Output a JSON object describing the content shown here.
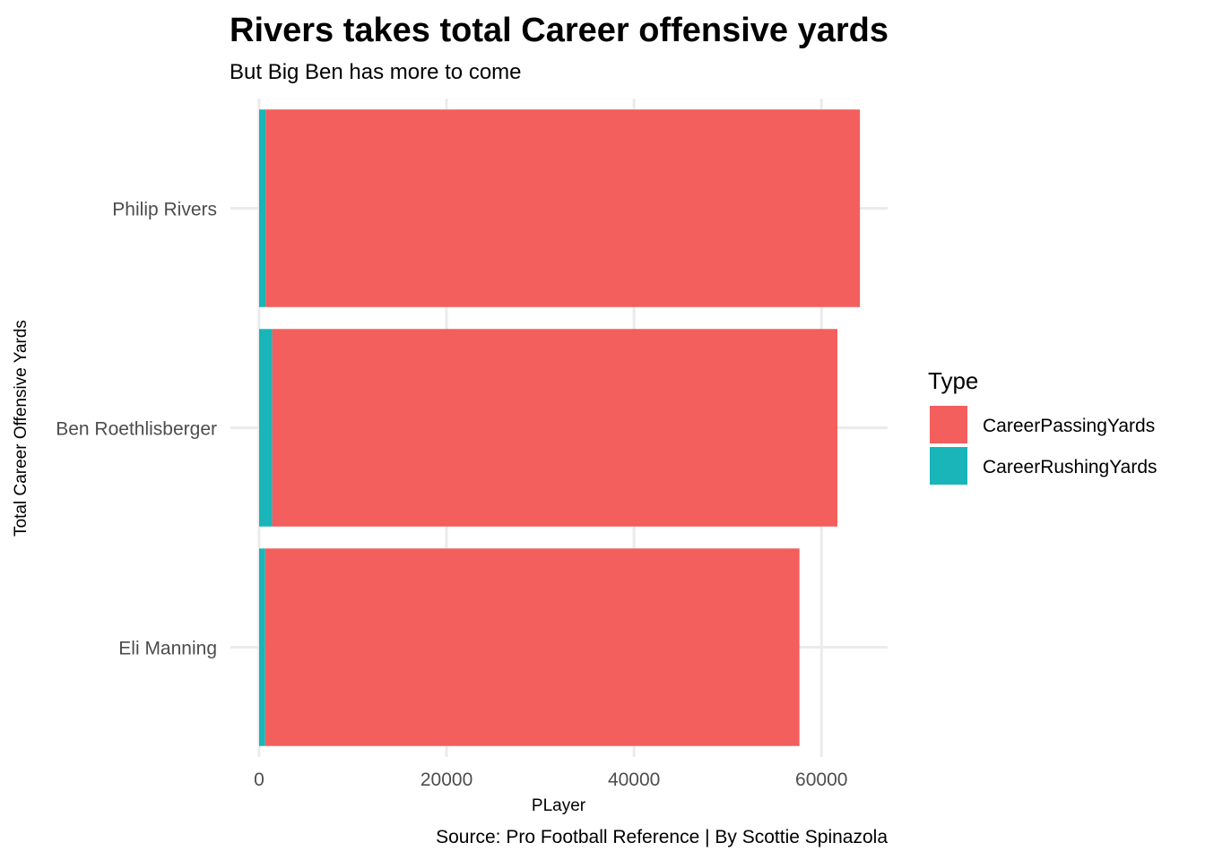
{
  "chart_data": {
    "type": "bar",
    "orientation": "horizontal",
    "stacked": true,
    "title": "Rivers takes total Career offensive yards",
    "subtitle": "But Big Ben has more to come",
    "xlabel": "PLayer",
    "ylabel": "Total Career Offensive Yards",
    "caption": "Source: Pro Football Reference | By Scottie Spinazola",
    "categories": [
      "Philip Rivers",
      "Ben Roethlisberger",
      "Eli Manning"
    ],
    "series": [
      {
        "name": "CareerRushingYards",
        "color": "#19b5b8",
        "values": [
          700,
          1400,
          650
        ]
      },
      {
        "name": "CareerPassingYards",
        "color": "#f25f5c",
        "values": [
          63400,
          60300,
          57000
        ]
      }
    ],
    "xlim": [
      0,
      67000
    ],
    "xticks": [
      0,
      20000,
      40000,
      60000
    ],
    "grid": true,
    "legend": {
      "title": "Type",
      "placement": "right",
      "entries": [
        {
          "name": "CareerPassingYards",
          "color": "#f25f5c"
        },
        {
          "name": "CareerRushingYards",
          "color": "#19b5b8"
        }
      ]
    }
  }
}
